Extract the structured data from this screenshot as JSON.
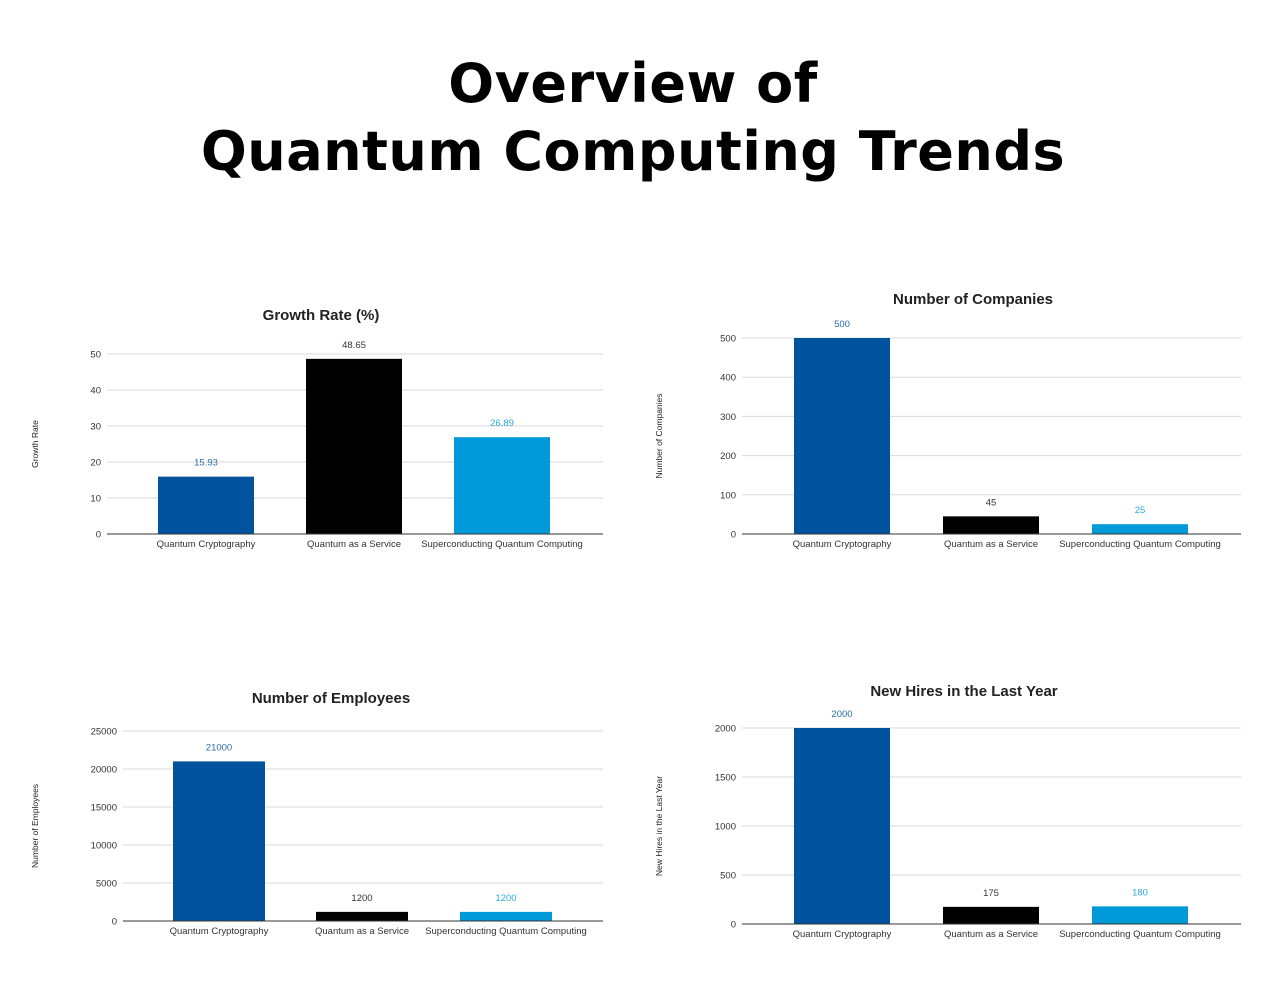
{
  "page": {
    "title_line1": "Overview of",
    "title_line2": "Quantum Computing Trends"
  },
  "chart_data": [
    {
      "id": "growth",
      "type": "bar",
      "title": "Growth Rate (%)",
      "xlabel": "",
      "ylabel": "Growth Rate",
      "categories": [
        "Quantum Cryptography",
        "Quantum as a Service",
        "Superconducting Quantum Computing"
      ],
      "values": [
        15.93,
        48.65,
        26.89
      ],
      "value_labels": [
        "15.93",
        "48.65",
        "26.89"
      ],
      "bar_colors": [
        "#00539C",
        "#000000",
        "#009AD9"
      ],
      "label_colors": [
        "#2B6BA8",
        "#333333",
        "#2FA8E0"
      ],
      "ylim": [
        0,
        50
      ],
      "yticks": [
        0,
        10,
        20,
        30,
        40,
        50
      ],
      "grid": true,
      "legend": "none"
    },
    {
      "id": "companies",
      "type": "bar",
      "title": "Number of Companies",
      "xlabel": "",
      "ylabel": "Number of Companies",
      "categories": [
        "Quantum Cryptography",
        "Quantum as a Service",
        "Superconducting Quantum Computing"
      ],
      "values": [
        500,
        45,
        25
      ],
      "value_labels": [
        "500",
        "45",
        "25"
      ],
      "bar_colors": [
        "#00539C",
        "#000000",
        "#009AD9"
      ],
      "label_colors": [
        "#2B6BA8",
        "#333333",
        "#2FA8E0"
      ],
      "ylim": [
        0,
        500
      ],
      "yticks": [
        0,
        100,
        200,
        300,
        400,
        500
      ],
      "grid": true,
      "legend": "none"
    },
    {
      "id": "employees",
      "type": "bar",
      "title": "Number of Employees",
      "xlabel": "",
      "ylabel": "Number of Employees",
      "categories": [
        "Quantum Cryptography",
        "Quantum as a Service",
        "Superconducting Quantum Computing"
      ],
      "values": [
        21000,
        1200,
        1200
      ],
      "value_labels": [
        "21000",
        "1200",
        "1200"
      ],
      "bar_colors": [
        "#00539C",
        "#000000",
        "#009AD9"
      ],
      "label_colors": [
        "#2B6BA8",
        "#333333",
        "#2FA8E0"
      ],
      "ylim": [
        0,
        25000
      ],
      "yticks": [
        0,
        5000,
        10000,
        15000,
        20000,
        25000
      ],
      "grid": true,
      "legend": "none"
    },
    {
      "id": "hires",
      "type": "bar",
      "title": "New Hires in the Last Year",
      "xlabel": "",
      "ylabel": "New Hires in the Last Year",
      "categories": [
        "Quantum Cryptography",
        "Quantum as a Service",
        "Superconducting Quantum Computing"
      ],
      "values": [
        2000,
        175,
        180
      ],
      "value_labels": [
        "2000",
        "175",
        "180"
      ],
      "bar_colors": [
        "#00539C",
        "#000000",
        "#009AD9"
      ],
      "label_colors": [
        "#2B6BA8",
        "#333333",
        "#2FA8E0"
      ],
      "ylim": [
        0,
        2000
      ],
      "yticks": [
        0,
        500,
        1000,
        1500,
        2000
      ],
      "grid": true,
      "legend": "none"
    }
  ]
}
